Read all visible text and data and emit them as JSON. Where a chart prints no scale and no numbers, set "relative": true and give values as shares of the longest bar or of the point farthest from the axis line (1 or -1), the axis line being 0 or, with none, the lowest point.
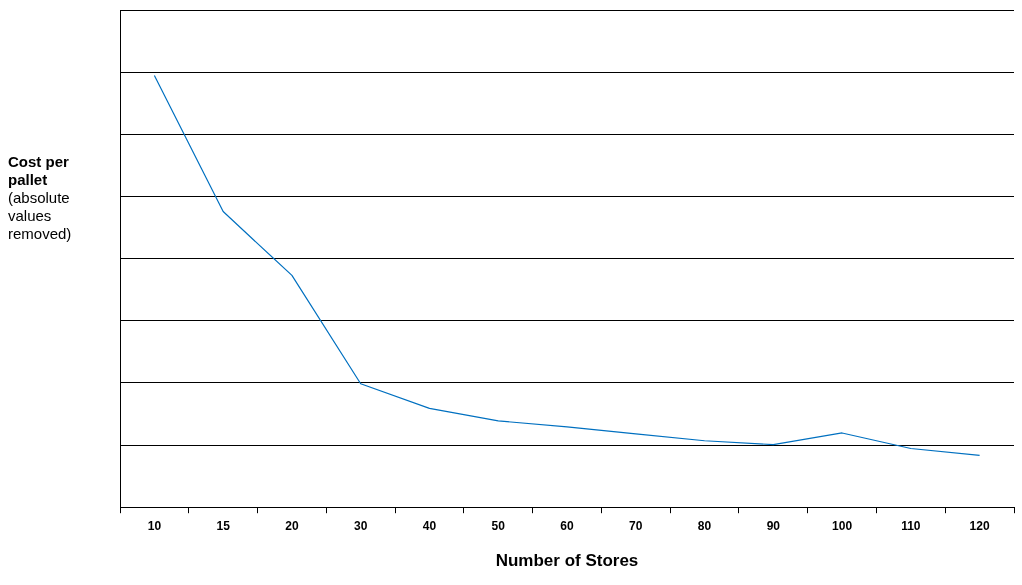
{
  "chart_data": {
    "type": "line",
    "xlabel": "Number of Stores",
    "ylabel": "Cost per pallet",
    "annotations": [
      "(absolute values removed)"
    ],
    "categories": [
      "10",
      "15",
      "20",
      "30",
      "40",
      "50",
      "60",
      "70",
      "80",
      "90",
      "100",
      "110",
      "120"
    ],
    "series": [
      {
        "color": "#0070c0",
        "values": [
          1,
          0.685,
          0.537,
          0.286,
          0.229,
          0.2,
          0.186,
          0.17,
          0.154,
          0.145,
          0.172,
          0.136,
          0.12
        ]
      }
    ],
    "relative": true,
    "grid": "y",
    "legend": false,
    "marker": "none",
    "line_style": "solid"
  }
}
